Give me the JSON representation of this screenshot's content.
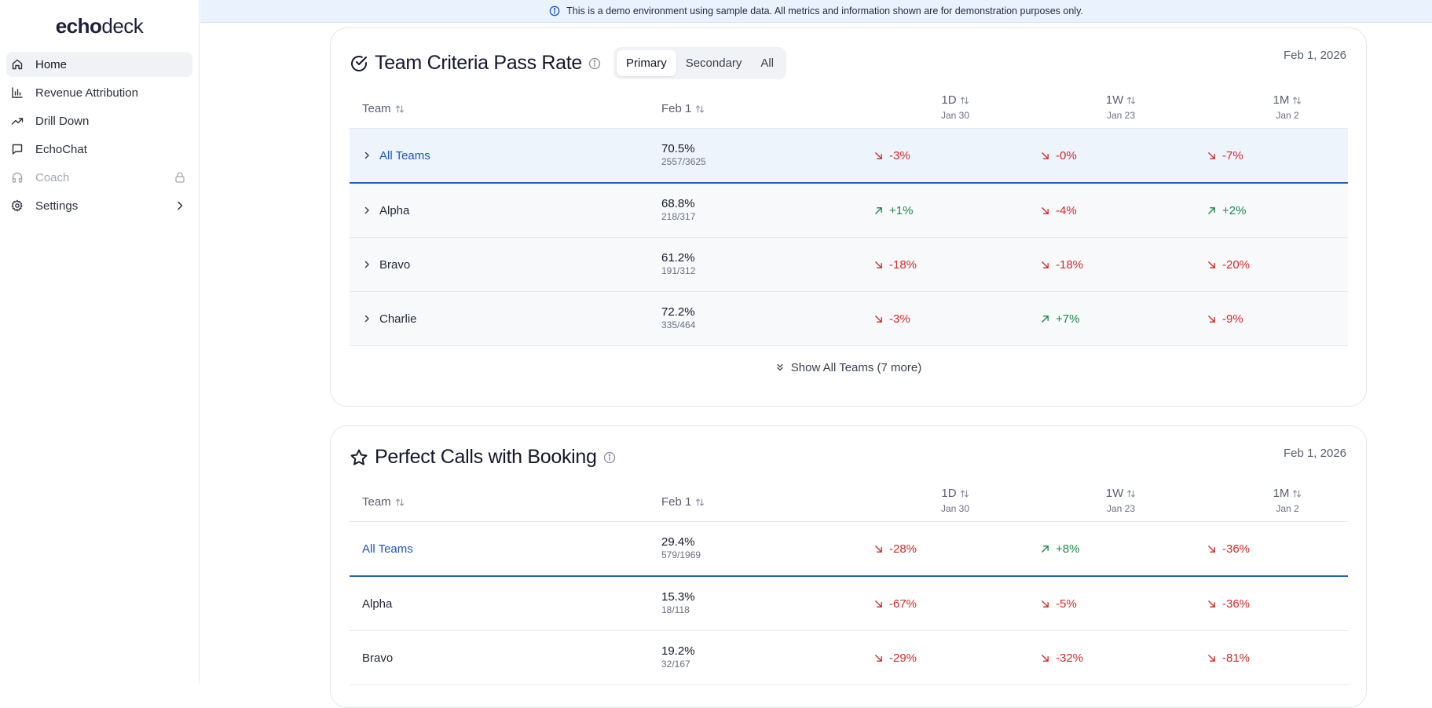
{
  "app": {
    "logo_bold": "echo",
    "logo_light": "deck"
  },
  "sidebar": {
    "items": [
      {
        "label": "Home",
        "icon": "home-icon"
      },
      {
        "label": "Revenue Attribution",
        "icon": "bar-chart-icon"
      },
      {
        "label": "Drill Down",
        "icon": "trending-up-icon"
      },
      {
        "label": "EchoChat",
        "icon": "chat-icon"
      },
      {
        "label": "Coach",
        "icon": "headphones-icon"
      },
      {
        "label": "Settings",
        "icon": "gear-icon"
      }
    ]
  },
  "banner": {
    "text": "This is a demo environment using sample data. All metrics and information shown are for demonstration purposes only."
  },
  "colors": {
    "down": "#d22b2b",
    "up": "#198a4a",
    "link": "#1c55c5",
    "highlight_bg": "#eef4fc"
  },
  "cards": [
    {
      "title": "Team Criteria Pass Rate",
      "date": "Feb 1, 2026",
      "tabs": [
        "Primary",
        "Secondary",
        "All"
      ],
      "selected_tab": "Primary",
      "columns": {
        "team": "Team",
        "current": "Feb 1",
        "d1": "1D",
        "d1_sub": "Jan 30",
        "w1": "1W",
        "w1_sub": "Jan 23",
        "m1": "1M",
        "m1_sub": "Jan 2"
      },
      "rows": [
        {
          "team": "All Teams",
          "pct": "70.5%",
          "frac": "2557/3625",
          "d1": "-3%",
          "w1": "-0%",
          "m1": "-7%"
        },
        {
          "team": "Alpha",
          "pct": "68.8%",
          "frac": "218/317",
          "d1": "+1%",
          "w1": "-4%",
          "m1": "+2%"
        },
        {
          "team": "Bravo",
          "pct": "61.2%",
          "frac": "191/312",
          "d1": "-18%",
          "w1": "-18%",
          "m1": "-20%"
        },
        {
          "team": "Charlie",
          "pct": "72.2%",
          "frac": "335/464",
          "d1": "-3%",
          "w1": "+7%",
          "m1": "-9%"
        }
      ],
      "show_all": "Show All Teams (7 more)"
    },
    {
      "title": "Perfect Calls with Booking",
      "date": "Feb 1, 2026",
      "columns": {
        "team": "Team",
        "current": "Feb 1",
        "d1": "1D",
        "d1_sub": "Jan 30",
        "w1": "1W",
        "w1_sub": "Jan 23",
        "m1": "1M",
        "m1_sub": "Jan 2"
      },
      "rows": [
        {
          "team": "All Teams",
          "pct": "29.4%",
          "frac": "579/1969",
          "d1": "-28%",
          "w1": "+8%",
          "m1": "-36%"
        },
        {
          "team": "Alpha",
          "pct": "15.3%",
          "frac": "18/118",
          "d1": "-67%",
          "w1": "-5%",
          "m1": "-36%"
        },
        {
          "team": "Bravo",
          "pct": "19.2%",
          "frac": "32/167",
          "d1": "-29%",
          "w1": "-32%",
          "m1": "-81%"
        }
      ]
    }
  ]
}
